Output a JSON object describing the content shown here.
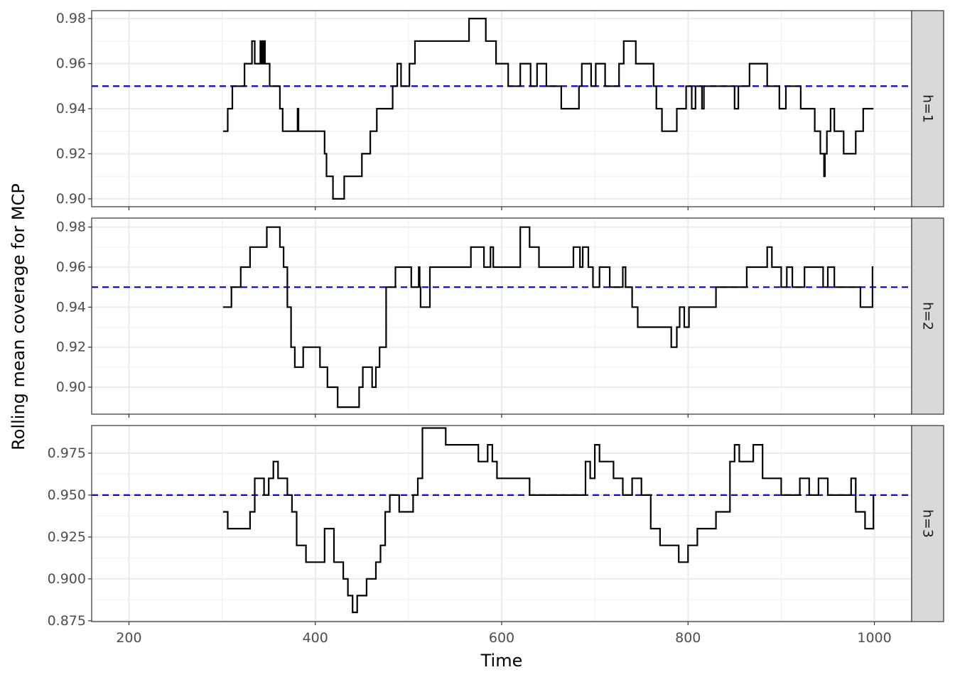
{
  "chart_data": {
    "type": "line",
    "xlabel": "Time",
    "ylabel": "Rolling mean coverage for MCP",
    "xlim": [
      160,
      1040
    ],
    "x_ticks": [
      200,
      400,
      600,
      800,
      1000
    ],
    "x_tick_labels": [
      "200",
      "400",
      "600",
      "800",
      "1000"
    ],
    "reference_line": {
      "y": 0.95,
      "color": "#0000ff",
      "style": "dashed"
    },
    "line_color": "#000000",
    "strip_fill": "#d9d9d9",
    "grid": true,
    "panels": [
      {
        "strip_label": "h=1",
        "ylim": [
          0.8965,
          0.9835
        ],
        "y_ticks": [
          0.9,
          0.92,
          0.94,
          0.96,
          0.98
        ],
        "y_tick_labels": [
          "0.90",
          "0.92",
          "0.94",
          "0.96",
          "0.98"
        ],
        "series": {
          "x": [
            301,
            305,
            306,
            310,
            311,
            315,
            323,
            324,
            331,
            332,
            334,
            335,
            340,
            341,
            342,
            343,
            344,
            345,
            346,
            350,
            351,
            361,
            362,
            364,
            365,
            380,
            381,
            382,
            383,
            385,
            409,
            410,
            411,
            412,
            418,
            419,
            430,
            431,
            437,
            438,
            449,
            450,
            458,
            459,
            465,
            466,
            482,
            483,
            487,
            488,
            491,
            492,
            500,
            501,
            506,
            507,
            564,
            565,
            582,
            583,
            593,
            594,
            606,
            607,
            619,
            620,
            630,
            631,
            637,
            638,
            647,
            648,
            663,
            664,
            676,
            677,
            682,
            683,
            685,
            686,
            695,
            696,
            700,
            701,
            710,
            711,
            725,
            726,
            730,
            731,
            733,
            734,
            743,
            744,
            762,
            763,
            765,
            766,
            771,
            772,
            787,
            788,
            797,
            798,
            803,
            804,
            807,
            808,
            814,
            815,
            816,
            817,
            831,
            832,
            849,
            850,
            853,
            854,
            857,
            858,
            865,
            866,
            884,
            885,
            897,
            898,
            904,
            905,
            914,
            915,
            920,
            921,
            935,
            936,
            941,
            942,
            946,
            947,
            948,
            949,
            952,
            953,
            956,
            957,
            966,
            967,
            969,
            970,
            979,
            980,
            987,
            988,
            998,
            999
          ],
          "y": [
            0.93,
            0.93,
            0.94,
            0.94,
            0.95,
            0.95,
            0.95,
            0.96,
            0.96,
            0.97,
            0.97,
            0.96,
            0.96,
            0.97,
            0.96,
            0.97,
            0.96,
            0.97,
            0.96,
            0.96,
            0.95,
            0.95,
            0.94,
            0.94,
            0.93,
            0.93,
            0.94,
            0.93,
            0.93,
            0.93,
            0.93,
            0.92,
            0.92,
            0.91,
            0.91,
            0.9,
            0.9,
            0.91,
            0.91,
            0.91,
            0.91,
            0.92,
            0.92,
            0.93,
            0.93,
            0.94,
            0.94,
            0.95,
            0.95,
            0.96,
            0.96,
            0.95,
            0.95,
            0.96,
            0.96,
            0.97,
            0.97,
            0.98,
            0.98,
            0.97,
            0.97,
            0.96,
            0.96,
            0.95,
            0.95,
            0.96,
            0.96,
            0.95,
            0.95,
            0.96,
            0.96,
            0.95,
            0.95,
            0.94,
            0.94,
            0.94,
            0.94,
            0.95,
            0.95,
            0.96,
            0.96,
            0.95,
            0.95,
            0.96,
            0.96,
            0.95,
            0.95,
            0.96,
            0.96,
            0.97,
            0.97,
            0.97,
            0.97,
            0.96,
            0.96,
            0.95,
            0.95,
            0.94,
            0.94,
            0.93,
            0.93,
            0.94,
            0.94,
            0.95,
            0.95,
            0.94,
            0.94,
            0.95,
            0.95,
            0.94,
            0.94,
            0.95,
            0.95,
            0.95,
            0.95,
            0.94,
            0.94,
            0.95,
            0.95,
            0.95,
            0.95,
            0.96,
            0.96,
            0.95,
            0.95,
            0.94,
            0.94,
            0.95,
            0.95,
            0.95,
            0.95,
            0.94,
            0.94,
            0.93,
            0.93,
            0.92,
            0.91,
            0.92,
            0.92,
            0.93,
            0.93,
            0.94,
            0.94,
            0.93,
            0.93,
            0.92,
            0.92,
            0.92,
            0.92,
            0.93,
            0.93,
            0.94,
            0.94,
            0.94
          ]
        }
      },
      {
        "strip_label": "h=2",
        "ylim": [
          0.8865,
          0.9845
        ],
        "y_ticks": [
          0.9,
          0.92,
          0.94,
          0.96,
          0.98
        ],
        "y_tick_labels": [
          "0.90",
          "0.92",
          "0.94",
          "0.96",
          "0.98"
        ],
        "series": {
          "x": [
            301,
            307,
            310,
            318,
            320,
            324,
            330,
            334,
            335,
            348,
            355,
            362,
            363,
            366,
            367,
            370,
            371,
            374,
            377,
            378,
            386,
            387,
            395,
            396,
            404,
            405,
            412,
            413,
            423,
            424,
            426,
            427,
            446,
            447,
            450,
            451,
            460,
            461,
            464,
            465,
            468,
            469,
            475,
            476,
            485,
            486,
            502,
            503,
            510,
            511,
            512,
            513,
            522,
            523,
            562,
            567,
            568,
            580,
            581,
            587,
            588,
            590,
            591,
            594,
            595,
            620,
            621,
            630,
            631,
            640,
            641,
            676,
            677,
            683,
            684,
            686,
            687,
            692,
            693,
            697,
            698,
            702,
            705,
            710,
            716,
            720,
            730,
            733,
            735,
            740,
            745,
            746,
            747,
            755,
            760,
            780,
            782,
            787,
            788,
            790,
            791,
            795,
            796,
            800,
            801,
            809,
            810,
            822,
            830,
            850,
            863,
            870,
            875,
            880,
            885,
            887,
            890,
            900,
            906,
            912,
            920,
            924,
            925,
            938,
            945,
            949,
            950,
            955,
            957,
            970,
            985,
            990,
            998,
            999
          ],
          "y": [
            0.94,
            0.94,
            0.95,
            0.95,
            0.96,
            0.96,
            0.97,
            0.97,
            0.97,
            0.98,
            0.98,
            0.97,
            0.97,
            0.96,
            0.96,
            0.94,
            0.94,
            0.92,
            0.92,
            0.91,
            0.91,
            0.92,
            0.92,
            0.92,
            0.92,
            0.91,
            0.91,
            0.9,
            0.9,
            0.89,
            0.89,
            0.89,
            0.89,
            0.9,
            0.9,
            0.91,
            0.91,
            0.9,
            0.9,
            0.91,
            0.91,
            0.92,
            0.92,
            0.95,
            0.95,
            0.96,
            0.96,
            0.95,
            0.95,
            0.96,
            0.95,
            0.94,
            0.94,
            0.96,
            0.96,
            0.97,
            0.97,
            0.97,
            0.96,
            0.96,
            0.97,
            0.97,
            0.96,
            0.96,
            0.96,
            0.98,
            0.98,
            0.97,
            0.97,
            0.96,
            0.96,
            0.96,
            0.97,
            0.97,
            0.96,
            0.96,
            0.97,
            0.97,
            0.96,
            0.96,
            0.95,
            0.95,
            0.96,
            0.96,
            0.95,
            0.95,
            0.96,
            0.95,
            0.95,
            0.94,
            0.94,
            0.93,
            0.93,
            0.93,
            0.93,
            0.93,
            0.92,
            0.92,
            0.93,
            0.93,
            0.94,
            0.94,
            0.93,
            0.93,
            0.94,
            0.94,
            0.94,
            0.94,
            0.95,
            0.95,
            0.96,
            0.96,
            0.96,
            0.96,
            0.97,
            0.97,
            0.96,
            0.95,
            0.96,
            0.95,
            0.95,
            0.95,
            0.96,
            0.96,
            0.95,
            0.95,
            0.96,
            0.96,
            0.95,
            0.95,
            0.94,
            0.94,
            0.96,
            0.96
          ]
        }
      },
      {
        "strip_label": "h=3",
        "ylim": [
          0.8745,
          0.9915
        ],
        "y_ticks": [
          0.875,
          0.9,
          0.925,
          0.95,
          0.975
        ],
        "y_tick_labels": [
          "0.875",
          "0.900",
          "0.925",
          "0.950",
          "0.975"
        ],
        "series": {
          "x": [
            301,
            305,
            306,
            330,
            335,
            340,
            345,
            350,
            355,
            360,
            365,
            370,
            375,
            380,
            385,
            390,
            400,
            405,
            410,
            415,
            420,
            425,
            430,
            435,
            440,
            445,
            450,
            455,
            460,
            465,
            470,
            475,
            480,
            485,
            490,
            495,
            505,
            510,
            515,
            520,
            525,
            530,
            535,
            540,
            570,
            575,
            580,
            585,
            590,
            595,
            600,
            620,
            630,
            650,
            670,
            690,
            695,
            700,
            705,
            710,
            720,
            730,
            740,
            750,
            760,
            770,
            780,
            790,
            800,
            810,
            820,
            830,
            840,
            845,
            850,
            855,
            860,
            870,
            880,
            890,
            900,
            910,
            920,
            930,
            940,
            950,
            960,
            970,
            975,
            980,
            990,
            995,
            999
          ],
          "y": [
            0.94,
            0.94,
            0.93,
            0.94,
            0.96,
            0.96,
            0.95,
            0.96,
            0.97,
            0.96,
            0.96,
            0.95,
            0.94,
            0.92,
            0.92,
            0.91,
            0.91,
            0.91,
            0.93,
            0.93,
            0.91,
            0.91,
            0.9,
            0.89,
            0.88,
            0.89,
            0.89,
            0.9,
            0.9,
            0.91,
            0.92,
            0.94,
            0.95,
            0.95,
            0.94,
            0.94,
            0.95,
            0.96,
            0.99,
            0.99,
            0.99,
            0.99,
            0.99,
            0.98,
            0.98,
            0.97,
            0.97,
            0.98,
            0.97,
            0.96,
            0.96,
            0.96,
            0.95,
            0.95,
            0.95,
            0.97,
            0.96,
            0.98,
            0.97,
            0.97,
            0.96,
            0.95,
            0.96,
            0.95,
            0.93,
            0.92,
            0.92,
            0.91,
            0.92,
            0.93,
            0.93,
            0.94,
            0.94,
            0.97,
            0.98,
            0.97,
            0.97,
            0.98,
            0.96,
            0.96,
            0.95,
            0.95,
            0.96,
            0.95,
            0.96,
            0.95,
            0.95,
            0.95,
            0.96,
            0.94,
            0.93,
            0.93,
            0.95
          ]
        }
      }
    ]
  }
}
